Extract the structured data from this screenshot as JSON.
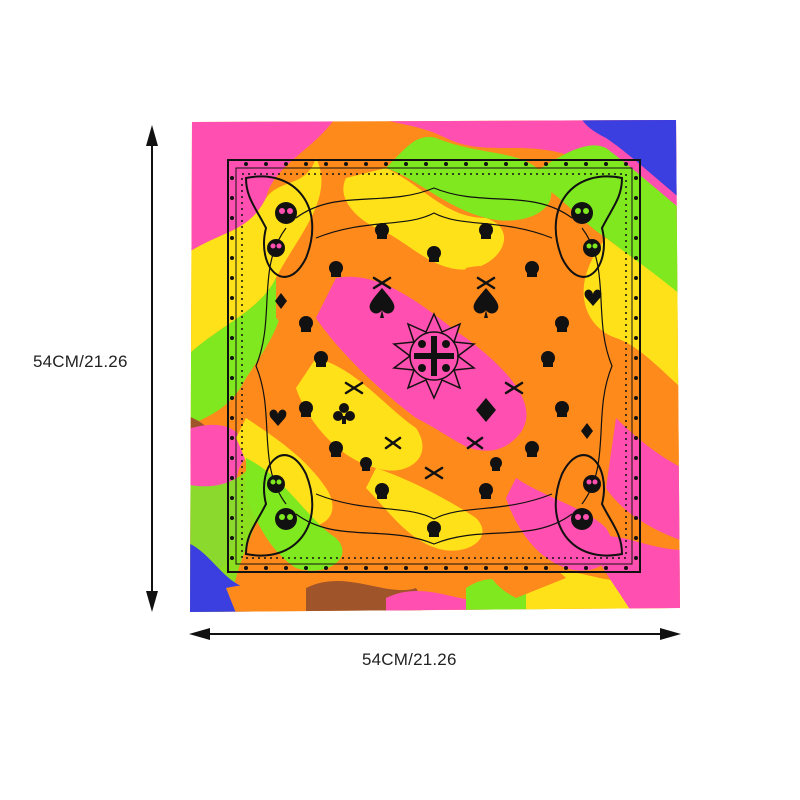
{
  "dimensions": {
    "height_label": "54CM/21.26",
    "width_label": "54CM/21.26"
  },
  "product": {
    "colors": [
      "#ff4fb0",
      "#ff8a1c",
      "#ffe11a",
      "#7fe81f",
      "#3b3fe0",
      "#a0542a",
      "#f0148a"
    ],
    "ink_color": "#111111",
    "motifs": [
      "skull-icon",
      "crossbones-icon",
      "spade-icon",
      "club-icon",
      "diamond-icon",
      "heart-icon",
      "paisley-icon"
    ]
  }
}
